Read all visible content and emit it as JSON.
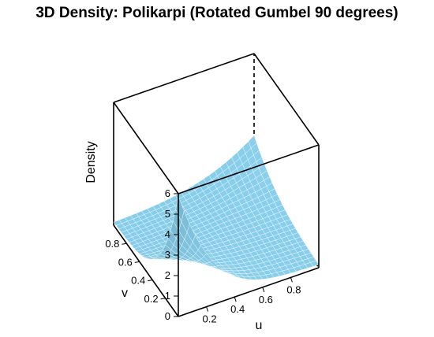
{
  "chart_data": {
    "type": "surface3d",
    "title": "3D Density: Polikarpi (Rotated Gumbel 90 degrees)",
    "xlabel": "u",
    "ylabel": "v",
    "zlabel": "Density",
    "x_ticks": [
      "0.2",
      "0.4",
      "0.6",
      "0.8"
    ],
    "y_ticks": [
      "0.2",
      "0.4",
      "0.6",
      "0.8"
    ],
    "z_ticks": [
      "0",
      "1",
      "2",
      "3",
      "4",
      "5",
      "6"
    ],
    "xlim": [
      0,
      1
    ],
    "ylim": [
      0,
      1
    ],
    "zlim": [
      0,
      6
    ],
    "grid_n": 25,
    "surface_samples": {
      "u_0_v_0": 5.5,
      "u_1_v_0": 0.2,
      "u_0_v_1": 0.1,
      "u_1_v_1": 1.6,
      "u_0.5_v_0.5": 0.4
    },
    "surface_color": "#87CEEB",
    "mesh_color": "#ffffff",
    "box_color": "#000000"
  }
}
